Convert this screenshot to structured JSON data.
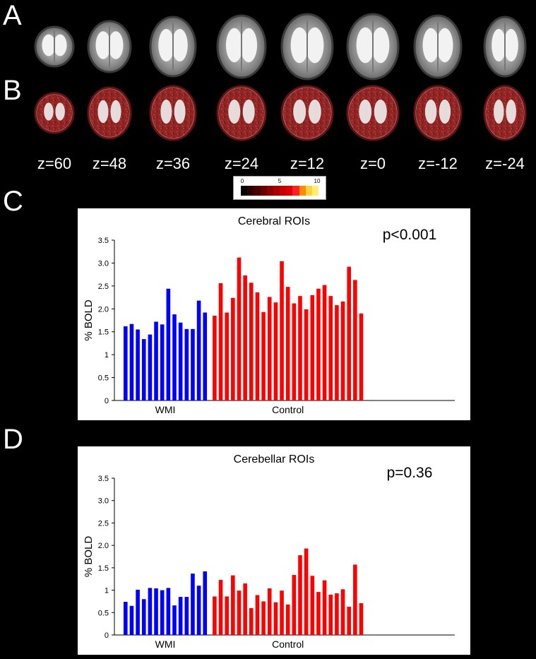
{
  "panels": {
    "a": "A",
    "b": "B",
    "c": "C",
    "d": "D"
  },
  "z_labels": [
    "z=60",
    "z=48",
    "z=36",
    "z=24",
    "z=12",
    "z=0",
    "z=-12",
    "z=-24"
  ],
  "colorbar": {
    "ticks": [
      "0",
      "5",
      "10"
    ],
    "colors": [
      "#000000",
      "#2a0000",
      "#4a0000",
      "#6a0000",
      "#8b0000",
      "#a80000",
      "#c80000",
      "#e00000",
      "#ff2020",
      "#ff8c00",
      "#ffd040",
      "#fff070"
    ]
  },
  "colors": {
    "wmi": "#0000ff",
    "control": "#ff0000"
  },
  "chart_data": [
    {
      "type": "bar",
      "title": "Cerebral ROIs",
      "annotation": "p<0.001",
      "ylabel": "% BOLD",
      "ylim": [
        0,
        3.5
      ],
      "yticks": [
        "0",
        "0.5",
        "1",
        "1.5",
        "2.0",
        "2.5",
        "3.0",
        "3.5"
      ],
      "group_labels": [
        "WMI",
        "Control"
      ],
      "series": [
        {
          "name": "WMI",
          "values": [
            1.62,
            1.67,
            1.55,
            1.34,
            1.44,
            1.72,
            1.66,
            2.44,
            1.88,
            1.7,
            1.56,
            1.56,
            2.18,
            1.92
          ]
        },
        {
          "name": "Control",
          "values": [
            1.85,
            2.56,
            1.92,
            2.24,
            3.12,
            2.73,
            2.57,
            2.36,
            1.93,
            2.26,
            2.14,
            3.04,
            2.48,
            2.12,
            2.28,
            1.99,
            2.3,
            2.44,
            2.52,
            2.28,
            2.08,
            2.16,
            2.92,
            2.63,
            1.9
          ]
        }
      ]
    },
    {
      "type": "bar",
      "title": "Cerebellar ROIs",
      "annotation": "p=0.36",
      "ylabel": "% BOLD",
      "ylim": [
        0,
        3.5
      ],
      "yticks": [
        "0",
        "0.5",
        "1",
        "1.5",
        "2.0",
        "2.5",
        "3.0",
        "3.5"
      ],
      "group_labels": [
        "WMI",
        "Control"
      ],
      "series": [
        {
          "name": "WMI",
          "values": [
            0.74,
            0.65,
            1.01,
            0.8,
            1.05,
            1.04,
            1.0,
            1.05,
            0.66,
            0.85,
            0.85,
            1.37,
            1.1,
            1.42
          ]
        },
        {
          "name": "Control",
          "values": [
            0.86,
            1.23,
            0.86,
            1.33,
            0.99,
            1.15,
            0.6,
            0.89,
            0.75,
            1.04,
            0.73,
            0.99,
            0.68,
            1.34,
            1.78,
            1.93,
            1.32,
            0.96,
            1.22,
            0.9,
            0.93,
            1.02,
            0.63,
            1.57,
            0.71
          ]
        }
      ]
    }
  ]
}
